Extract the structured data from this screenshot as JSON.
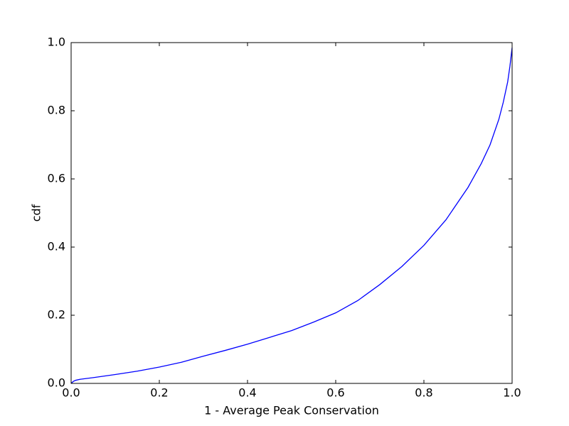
{
  "chart_data": {
    "type": "line",
    "x_label": "1 - Average Peak Conservation",
    "y_label": "cdf",
    "x": [
      0,
      0.005,
      0.01,
      0.02,
      0.05,
      0.1,
      0.15,
      0.2,
      0.25,
      0.3,
      0.35,
      0.4,
      0.45,
      0.5,
      0.55,
      0.6,
      0.65,
      0.7,
      0.75,
      0.8,
      0.85,
      0.9,
      0.93,
      0.95,
      0.97,
      0.98,
      0.99,
      0.995,
      1.0
    ],
    "series": [
      {
        "color": "#0000ff",
        "values": [
          0,
          0.006,
          0.009,
          0.012,
          0.017,
          0.026,
          0.036,
          0.048,
          0.062,
          0.08,
          0.097,
          0.115,
          0.135,
          0.155,
          0.18,
          0.207,
          0.243,
          0.29,
          0.343,
          0.405,
          0.48,
          0.575,
          0.645,
          0.7,
          0.775,
          0.825,
          0.885,
          0.93,
          0.985
        ]
      }
    ],
    "xlim": [
      0,
      1
    ],
    "ylim": [
      0,
      1
    ],
    "xticks": [
      {
        "value": 0,
        "label": "0.0"
      },
      0.2,
      0.4,
      0.6,
      0.8,
      {
        "value": 1,
        "label": "1.0"
      }
    ],
    "yticks": [
      {
        "value": 0,
        "label": "0.0"
      },
      0.2,
      0.4,
      0.6,
      0.8,
      {
        "value": 1,
        "label": "1.0"
      }
    ],
    "grid": false
  }
}
